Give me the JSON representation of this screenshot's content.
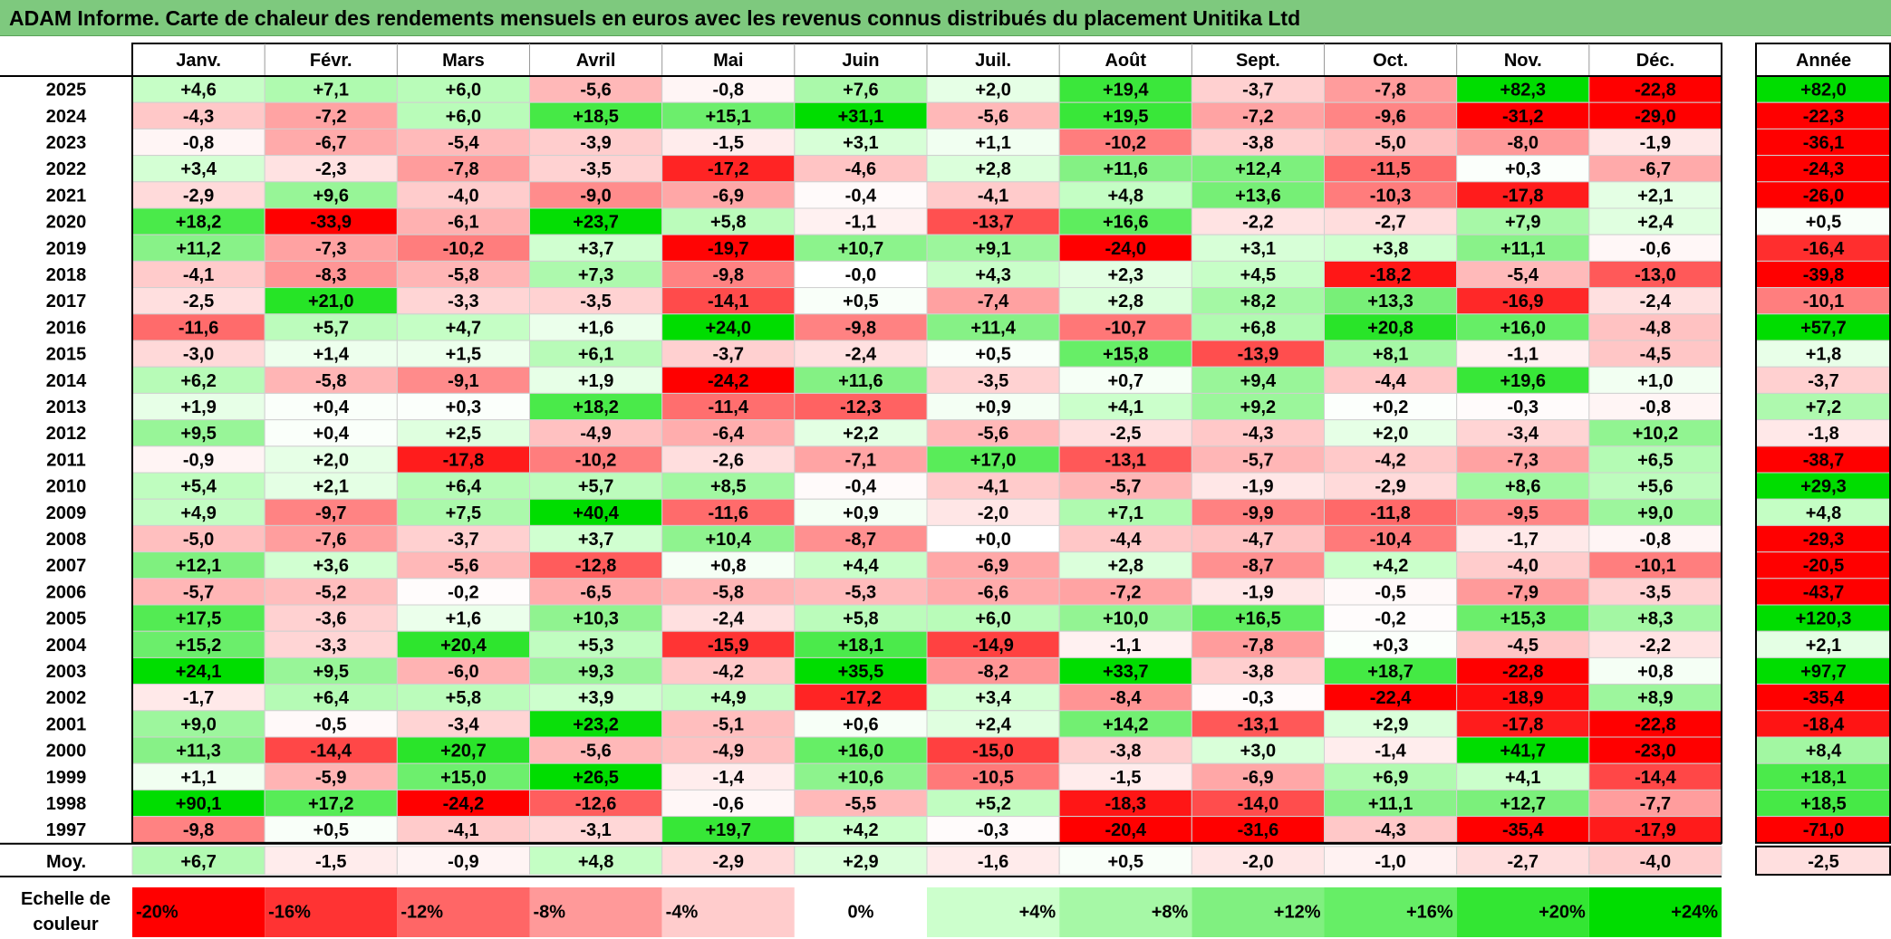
{
  "title": "ADAM Informe. Carte de chaleur des rendements mensuels en euros avec les revenus connus distribués du placement Unitika Ltd",
  "chart_data": {
    "type": "heatmap",
    "columns": [
      "Janv.",
      "Févr.",
      "Mars",
      "Avril",
      "Mai",
      "Juin",
      "Juil.",
      "Août",
      "Sept.",
      "Oct.",
      "Nov.",
      "Déc."
    ],
    "year_header": "Année",
    "avg_label": "Moy.",
    "rows": [
      {
        "year": "2025",
        "values": [
          4.6,
          7.1,
          6.0,
          -5.6,
          -0.8,
          7.6,
          2.0,
          19.4,
          -3.7,
          -7.8,
          82.3,
          -22.8
        ],
        "annual": 82.0
      },
      {
        "year": "2024",
        "values": [
          -4.3,
          -7.2,
          6.0,
          18.5,
          15.1,
          31.1,
          -5.6,
          19.5,
          -7.2,
          -9.6,
          -31.2,
          -29.0
        ],
        "annual": -22.3
      },
      {
        "year": "2023",
        "values": [
          -0.8,
          -6.7,
          -5.4,
          -3.9,
          -1.5,
          3.1,
          1.1,
          -10.2,
          -3.8,
          -5.0,
          -8.0,
          -1.9
        ],
        "annual": -36.1
      },
      {
        "year": "2022",
        "values": [
          3.4,
          -2.3,
          -7.8,
          -3.5,
          -17.2,
          -4.6,
          2.8,
          11.6,
          12.4,
          -11.5,
          0.3,
          -6.7
        ],
        "annual": -24.3
      },
      {
        "year": "2021",
        "values": [
          -2.9,
          9.6,
          -4.0,
          -9.0,
          -6.9,
          -0.4,
          -4.1,
          4.8,
          13.6,
          -10.3,
          -17.8,
          2.1
        ],
        "annual": -26.0
      },
      {
        "year": "2020",
        "values": [
          18.2,
          -33.9,
          -6.1,
          23.7,
          5.8,
          -1.1,
          -13.7,
          16.6,
          -2.2,
          -2.7,
          7.9,
          2.4
        ],
        "annual": 0.5
      },
      {
        "year": "2019",
        "values": [
          11.2,
          -7.3,
          -10.2,
          3.7,
          -19.7,
          10.7,
          9.1,
          -24.0,
          3.1,
          3.8,
          11.1,
          -0.6
        ],
        "annual": -16.4
      },
      {
        "year": "2018",
        "values": [
          -4.1,
          -8.3,
          -5.8,
          7.3,
          -9.8,
          -0.0,
          4.3,
          2.3,
          4.5,
          -18.2,
          -5.4,
          -13.0
        ],
        "annual": -39.8
      },
      {
        "year": "2017",
        "values": [
          -2.5,
          21.0,
          -3.3,
          -3.5,
          -14.1,
          0.5,
          -7.4,
          2.8,
          8.2,
          13.3,
          -16.9,
          -2.4
        ],
        "annual": -10.1
      },
      {
        "year": "2016",
        "values": [
          -11.6,
          5.7,
          4.7,
          1.6,
          24.0,
          -9.8,
          11.4,
          -10.7,
          6.8,
          20.8,
          16.0,
          -4.8
        ],
        "annual": 57.7
      },
      {
        "year": "2015",
        "values": [
          -3.0,
          1.4,
          1.5,
          6.1,
          -3.7,
          -2.4,
          0.5,
          15.8,
          -13.9,
          8.1,
          -1.1,
          -4.5
        ],
        "annual": 1.8
      },
      {
        "year": "2014",
        "values": [
          6.2,
          -5.8,
          -9.1,
          1.9,
          -24.2,
          11.6,
          -3.5,
          0.7,
          9.4,
          -4.4,
          19.6,
          1.0
        ],
        "annual": -3.7
      },
      {
        "year": "2013",
        "values": [
          1.9,
          0.4,
          0.3,
          18.2,
          -11.4,
          -12.3,
          0.9,
          4.1,
          9.2,
          0.2,
          -0.3,
          -0.8
        ],
        "annual": 7.2
      },
      {
        "year": "2012",
        "values": [
          9.5,
          0.4,
          2.5,
          -4.9,
          -6.4,
          2.2,
          -5.6,
          -2.5,
          -4.3,
          2.0,
          -3.4,
          10.2
        ],
        "annual": -1.8
      },
      {
        "year": "2011",
        "values": [
          -0.9,
          2.0,
          -17.8,
          -10.2,
          -2.6,
          -7.1,
          17.0,
          -13.1,
          -5.7,
          -4.2,
          -7.3,
          6.5
        ],
        "annual": -38.7
      },
      {
        "year": "2010",
        "values": [
          5.4,
          2.1,
          6.4,
          5.7,
          8.5,
          -0.4,
          -4.1,
          -5.7,
          -1.9,
          -2.9,
          8.6,
          5.6
        ],
        "annual": 29.3
      },
      {
        "year": "2009",
        "values": [
          4.9,
          -9.7,
          7.5,
          40.4,
          -11.6,
          0.9,
          -2.0,
          7.1,
          -9.9,
          -11.8,
          -9.5,
          9.0
        ],
        "annual": 4.8
      },
      {
        "year": "2008",
        "values": [
          -5.0,
          -7.6,
          -3.7,
          3.7,
          10.4,
          -8.7,
          0.0,
          -4.4,
          -4.7,
          -10.4,
          -1.7,
          -0.8
        ],
        "annual": -29.3
      },
      {
        "year": "2007",
        "values": [
          12.1,
          3.6,
          -5.6,
          -12.8,
          0.8,
          4.4,
          -6.9,
          2.8,
          -8.7,
          4.2,
          -4.0,
          -10.1
        ],
        "annual": -20.5
      },
      {
        "year": "2006",
        "values": [
          -5.7,
          -5.2,
          -0.2,
          -6.5,
          -5.8,
          -5.3,
          -6.6,
          -7.2,
          -1.9,
          -0.5,
          -7.9,
          -3.5
        ],
        "annual": -43.7
      },
      {
        "year": "2005",
        "values": [
          17.5,
          -3.6,
          1.6,
          10.3,
          -2.4,
          5.8,
          6.0,
          10.0,
          16.5,
          -0.2,
          15.3,
          8.3
        ],
        "annual": 120.3
      },
      {
        "year": "2004",
        "values": [
          15.2,
          -3.3,
          20.4,
          5.3,
          -15.9,
          18.1,
          -14.9,
          -1.1,
          -7.8,
          0.3,
          -4.5,
          -2.2
        ],
        "annual": 2.1
      },
      {
        "year": "2003",
        "values": [
          24.1,
          9.5,
          -6.0,
          9.3,
          -4.2,
          35.5,
          -8.2,
          33.7,
          -3.8,
          18.7,
          -22.8,
          0.8
        ],
        "annual": 97.7
      },
      {
        "year": "2002",
        "values": [
          -1.7,
          6.4,
          5.8,
          3.9,
          4.9,
          -17.2,
          3.4,
          -8.4,
          -0.3,
          -22.4,
          -18.9,
          8.9
        ],
        "annual": -35.4
      },
      {
        "year": "2001",
        "values": [
          9.0,
          -0.5,
          -3.4,
          23.2,
          -5.1,
          0.6,
          2.4,
          14.2,
          -13.1,
          2.9,
          -17.8,
          -22.8
        ],
        "annual": -18.4
      },
      {
        "year": "2000",
        "values": [
          11.3,
          -14.4,
          20.7,
          -5.6,
          -4.9,
          16.0,
          -15.0,
          -3.8,
          3.0,
          -1.4,
          41.7,
          -23.0
        ],
        "annual": 8.4
      },
      {
        "year": "1999",
        "values": [
          1.1,
          -5.9,
          15.0,
          26.5,
          -1.4,
          10.6,
          -10.5,
          -1.5,
          -6.9,
          6.9,
          4.1,
          -14.4
        ],
        "annual": 18.1
      },
      {
        "year": "1998",
        "values": [
          90.1,
          17.2,
          -24.2,
          -12.6,
          -0.6,
          -5.5,
          5.2,
          -18.3,
          -14.0,
          11.1,
          12.7,
          -7.7
        ],
        "annual": 18.5
      },
      {
        "year": "1997",
        "values": [
          -9.8,
          0.5,
          -4.1,
          -3.1,
          19.7,
          4.2,
          -0.3,
          -20.4,
          -31.6,
          -4.3,
          -35.4,
          -17.9
        ],
        "annual": -71.0
      }
    ],
    "averages": {
      "values": [
        6.7,
        -1.5,
        -0.9,
        4.8,
        -2.9,
        2.9,
        -1.6,
        0.5,
        -2.0,
        -1.0,
        -2.7,
        -4.0
      ],
      "annual": -2.5
    },
    "special_labels": {
      "2018|5": "-0,0",
      "2008|6": "+0,0"
    },
    "color_scale": {
      "caption_line1": "Echelle de",
      "caption_line2": "couleur",
      "stops": [
        {
          "label": "-20%",
          "value": -20,
          "color": "#ff0000"
        },
        {
          "label": "-16%",
          "value": -16,
          "color": "#ff3333"
        },
        {
          "label": "-12%",
          "value": -12,
          "color": "#ff6666"
        },
        {
          "label": "-8%",
          "value": -8,
          "color": "#ff9999"
        },
        {
          "label": "-4%",
          "value": -4,
          "color": "#ffcccc"
        },
        {
          "label": "0%",
          "value": 0,
          "color": "#ffffff"
        },
        {
          "label": "+4%",
          "value": 4,
          "color": "#ccffcc"
        },
        {
          "label": "+8%",
          "value": 8,
          "color": "#a6f8a6"
        },
        {
          "label": "+12%",
          "value": 12,
          "color": "#80f080"
        },
        {
          "label": "+16%",
          "value": 16,
          "color": "#66ee66"
        },
        {
          "label": "+20%",
          "value": 20,
          "color": "#33e633"
        },
        {
          "label": "+24%",
          "value": 24,
          "color": "#00dd00"
        }
      ]
    }
  }
}
